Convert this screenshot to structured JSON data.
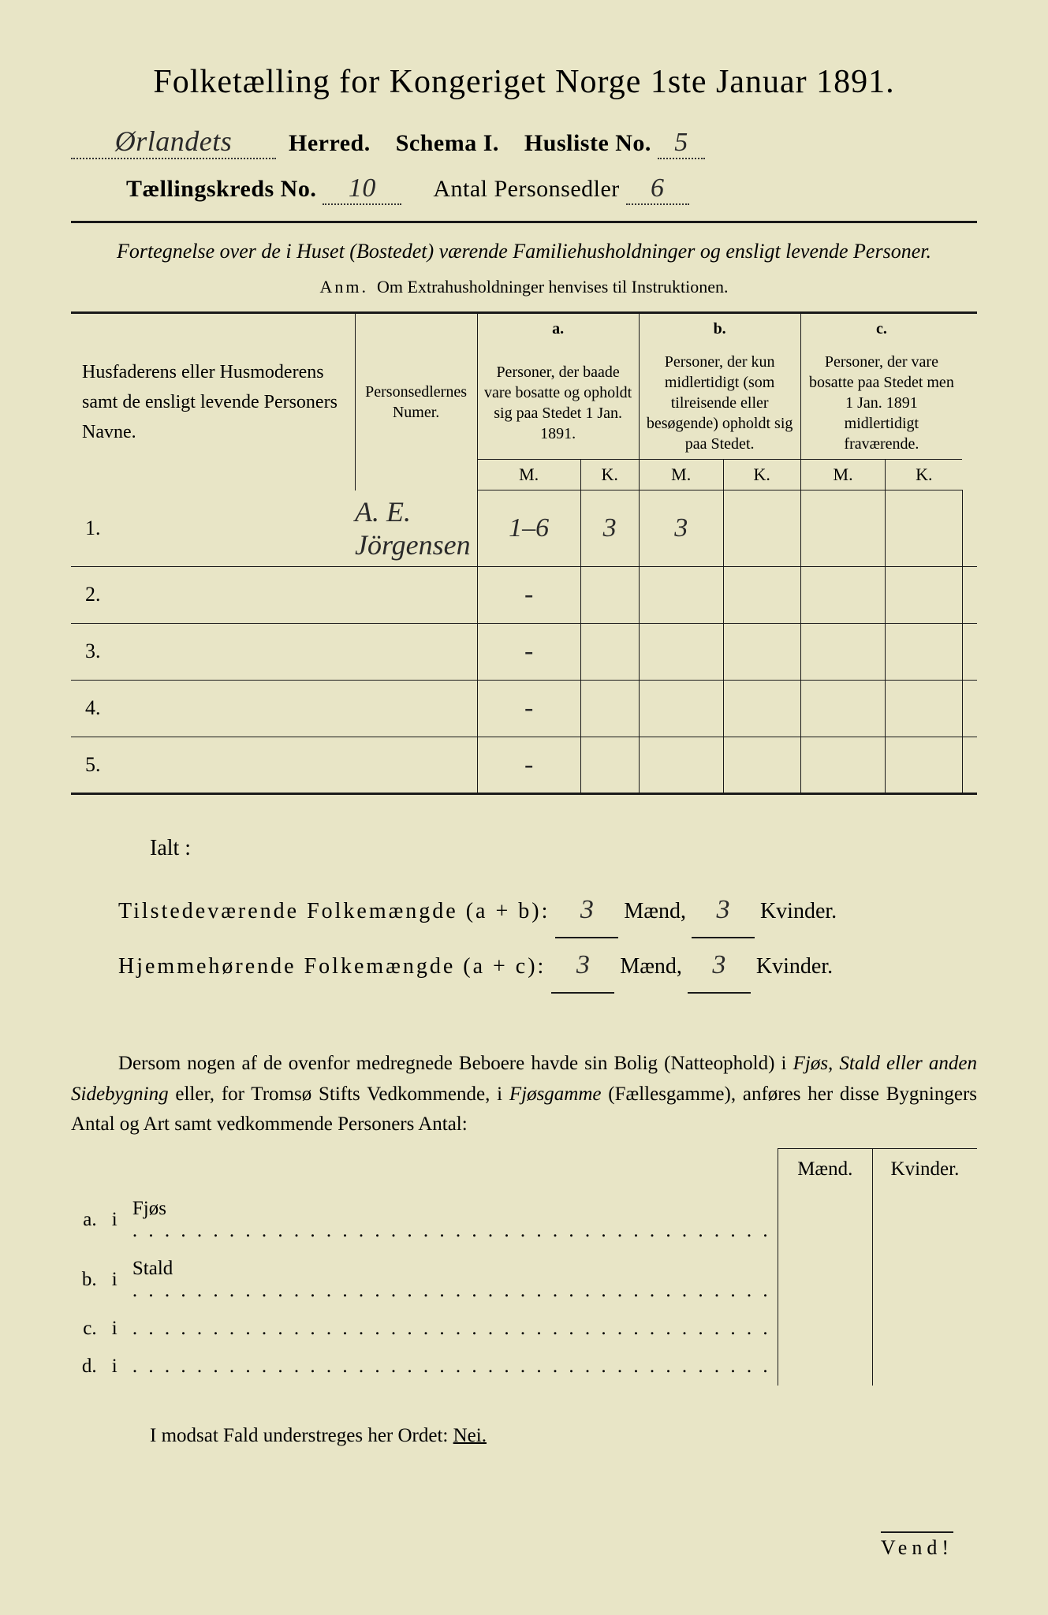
{
  "colors": {
    "paper": "#e8e5c6",
    "ink": "#1a1a1a",
    "background": "#2a2a2a"
  },
  "title": "Folketælling for Kongeriget Norge 1ste Januar 1891.",
  "header": {
    "herred_handwritten": "Ørlandets",
    "herred_label": "Herred.",
    "schema_label": "Schema I.",
    "husliste_label": "Husliste No.",
    "husliste_no": "5",
    "kreds_label": "Tællingskreds No.",
    "kreds_no": "10",
    "personsedler_label": "Antal Personsedler",
    "personsedler_no": "6"
  },
  "subtitle": "Fortegnelse over de i Huset (Bostedet) værende Familiehusholdninger og ensligt levende Personer.",
  "anm_label": "Anm.",
  "anm_text": "Om Extrahusholdninger henvises til Instruktionen.",
  "table": {
    "col1": "Husfaderens eller Husmoderens samt de ensligt levende Personers Navne.",
    "col2": "Personsedlernes Numer.",
    "col_a_letter": "a.",
    "col_a": "Personer, der baade vare bosatte og opholdt sig paa Stedet 1 Jan. 1891.",
    "col_b_letter": "b.",
    "col_b": "Personer, der kun midlertidigt (som tilreisende eller besøgende) opholdt sig paa Stedet.",
    "col_c_letter": "c.",
    "col_c": "Personer, der vare bosatte paa Stedet men 1 Jan. 1891 midlertidigt fraværende.",
    "m": "M.",
    "k": "K.",
    "rows": [
      {
        "n": "1.",
        "name": "A. E. Jörgensen",
        "sedler": "1–6",
        "am": "3",
        "ak": "3",
        "bm": "",
        "bk": "",
        "cm": "",
        "ck": ""
      },
      {
        "n": "2.",
        "name": "",
        "sedler": "-",
        "am": "",
        "ak": "",
        "bm": "",
        "bk": "",
        "cm": "",
        "ck": ""
      },
      {
        "n": "3.",
        "name": "",
        "sedler": "-",
        "am": "",
        "ak": "",
        "bm": "",
        "bk": "",
        "cm": "",
        "ck": ""
      },
      {
        "n": "4.",
        "name": "",
        "sedler": "-",
        "am": "",
        "ak": "",
        "bm": "",
        "bk": "",
        "cm": "",
        "ck": ""
      },
      {
        "n": "5.",
        "name": "",
        "sedler": "-",
        "am": "",
        "ak": "",
        "bm": "",
        "bk": "",
        "cm": "",
        "ck": ""
      }
    ]
  },
  "totals": {
    "ialt": "Ialt :",
    "line1_label": "Tilstedeværende Folkemængde (a + b):",
    "line2_label": "Hjemmehørende Folkemængde (a + c):",
    "maend": "Mænd,",
    "kvinder": "Kvinder.",
    "l1m": "3",
    "l1k": "3",
    "l2m": "3",
    "l2k": "3"
  },
  "paragraph": "Dersom nogen af de ovenfor medregnede Beboere havde sin Bolig (Natteophold) i Fjøs, Stald eller anden Sidebygning eller, for Tromsø Stifts Vedkommende, i Fjøsgamme (Fællesgamme), anføres her disse Bygningers Antal og Art samt vedkommende Personers Antal:",
  "bldg": {
    "maend": "Mænd.",
    "kvinder": "Kvinder.",
    "rows": [
      {
        "l": "a.",
        "i": "i",
        "t": "Fjøs"
      },
      {
        "l": "b.",
        "i": "i",
        "t": "Stald"
      },
      {
        "l": "c.",
        "i": "i",
        "t": ""
      },
      {
        "l": "d.",
        "i": "i",
        "t": ""
      }
    ]
  },
  "nei_line": "I modsat Fald understreges her Ordet:",
  "nei": "Nei.",
  "vend": "Vend!"
}
